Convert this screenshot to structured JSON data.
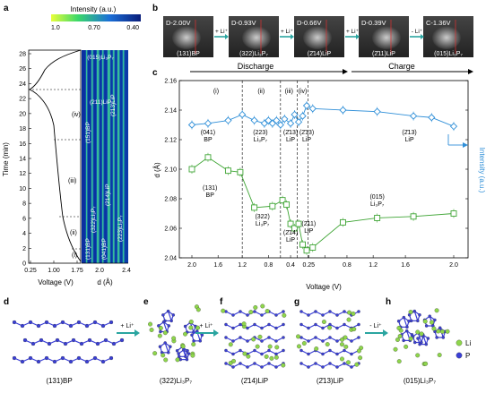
{
  "panel_letters": {
    "a": "a",
    "b": "b",
    "c": "c",
    "d": "d",
    "e": "e",
    "f": "f",
    "g": "g",
    "h": "h"
  },
  "panel_a": {
    "colorbar_title": "Intensity (a.u.)",
    "colorbar_ticks": [
      "1.0",
      "0.70",
      "0.40"
    ],
    "y_label": "Time (min)",
    "y_ticks": [
      "0",
      "2",
      "4",
      "6",
      "8",
      "10",
      "12",
      "14",
      "16",
      "18",
      "20",
      "22",
      "24",
      "26",
      "28"
    ],
    "x_label_left": "Voltage (V)",
    "x_ticks_left": [
      "0.25",
      "1.00",
      "1.75"
    ],
    "x_label_right": "d (Å)",
    "x_ticks_right": [
      "2.0",
      "2.4"
    ],
    "stages": [
      "(i)",
      "(ii)",
      "(iii)",
      "(iv)"
    ],
    "map_labels": [
      "(015)Li₃P₇",
      "(211)LiP",
      "(213)LiP",
      "(151)BP",
      "(214)LiP",
      "(322)Li₃P₇",
      "(131)BP",
      "(041)BP",
      "(223)Li₃P₇"
    ]
  },
  "panel_b": {
    "frames": [
      {
        "voltage": "D-2.00V",
        "plane": "(131)BP"
      },
      {
        "voltage": "D-0.93V",
        "plane": "(322)Li₃P₇"
      },
      {
        "voltage": "D-0.66V",
        "plane": "(2̄14)LiP"
      },
      {
        "voltage": "D-0.39V",
        "plane": "(2̄11)LiP"
      },
      {
        "voltage": "C-1.36V",
        "plane": "(015)Li₃P₇"
      }
    ],
    "arrows": [
      "+ Li⁺",
      "+ Li⁺",
      "+ Li⁺",
      "- Li⁺"
    ]
  },
  "panel_c": {
    "discharge_label": "Discharge",
    "charge_label": "Charge",
    "stages": [
      "(i)",
      "(ii)",
      "(iii)",
      "(iv)"
    ],
    "annotations_top": [
      "(041)\nBP",
      "(223)\nLi₃P₇",
      "(2̄13)\nLiP",
      "(2̄13)\nLiP",
      "(2̄13)\nLiP"
    ],
    "annotations_bottom": [
      "(131)\nBP",
      "(322)\nLi₃P₇",
      "(2̄14)\nLiP",
      "(2̄11)\nLiP",
      "(015)\nLi₃P₇"
    ]
  },
  "chart_data": {
    "type": "scatter",
    "xlabel": "Voltage (V)",
    "ylabel": "d (Å)",
    "y2label": "Intensity (a.u.)",
    "ylim": [
      2.04,
      2.16
    ],
    "yticks": [
      2.04,
      2.06,
      2.08,
      2.1,
      2.12,
      2.14,
      2.16
    ],
    "x_tick_labels": [
      "2.0",
      "1.6",
      "1.2",
      "0.8",
      "0.4",
      "0.25",
      "0.4",
      "0.8",
      "1.2",
      "1.6",
      "2.0"
    ],
    "series": [
      {
        "color": "#2f8fd8",
        "marker": "diamond",
        "x": [
          0,
          0.4,
          0.9,
          1.25,
          1.55,
          1.8,
          1.9,
          2.0,
          2.1,
          2.2,
          2.3,
          2.45,
          2.55,
          2.65,
          2.75,
          2.85,
          3.0,
          3.75,
          4.6,
          5.5,
          5.95,
          6.5
        ],
        "y": [
          2.13,
          2.131,
          2.133,
          2.137,
          2.133,
          2.131,
          2.133,
          2.131,
          2.133,
          2.13,
          2.134,
          2.131,
          2.137,
          2.132,
          2.136,
          2.143,
          2.141,
          2.14,
          2.139,
          2.136,
          2.135,
          2.129
        ]
      },
      {
        "color": "#3fa535",
        "marker": "square",
        "x": [
          0,
          0.4,
          0.9,
          1.2,
          1.55,
          2.0,
          2.25,
          2.35,
          2.45,
          2.55,
          2.65,
          2.75,
          2.85,
          3.0,
          3.75,
          4.6,
          5.5,
          6.5
        ],
        "y": [
          2.1,
          2.108,
          2.099,
          2.098,
          2.074,
          2.075,
          2.079,
          2.076,
          2.063,
          2.06,
          2.063,
          2.049,
          2.045,
          2.047,
          2.064,
          2.067,
          2.068,
          2.07
        ]
      }
    ]
  },
  "panel_dh": {
    "arrows": [
      "+ Li⁺",
      "+ Li⁺",
      "- Li⁺"
    ],
    "labels": [
      "(131)BP",
      "(322)Li₃P₇",
      "(2̄14)LiP",
      "(2̄13)LiP",
      "(015)Li₃P₇"
    ],
    "legend": [
      {
        "name": "Li",
        "color": "#8ed64b"
      },
      {
        "name": "P",
        "color": "#3a3fd6"
      }
    ]
  }
}
